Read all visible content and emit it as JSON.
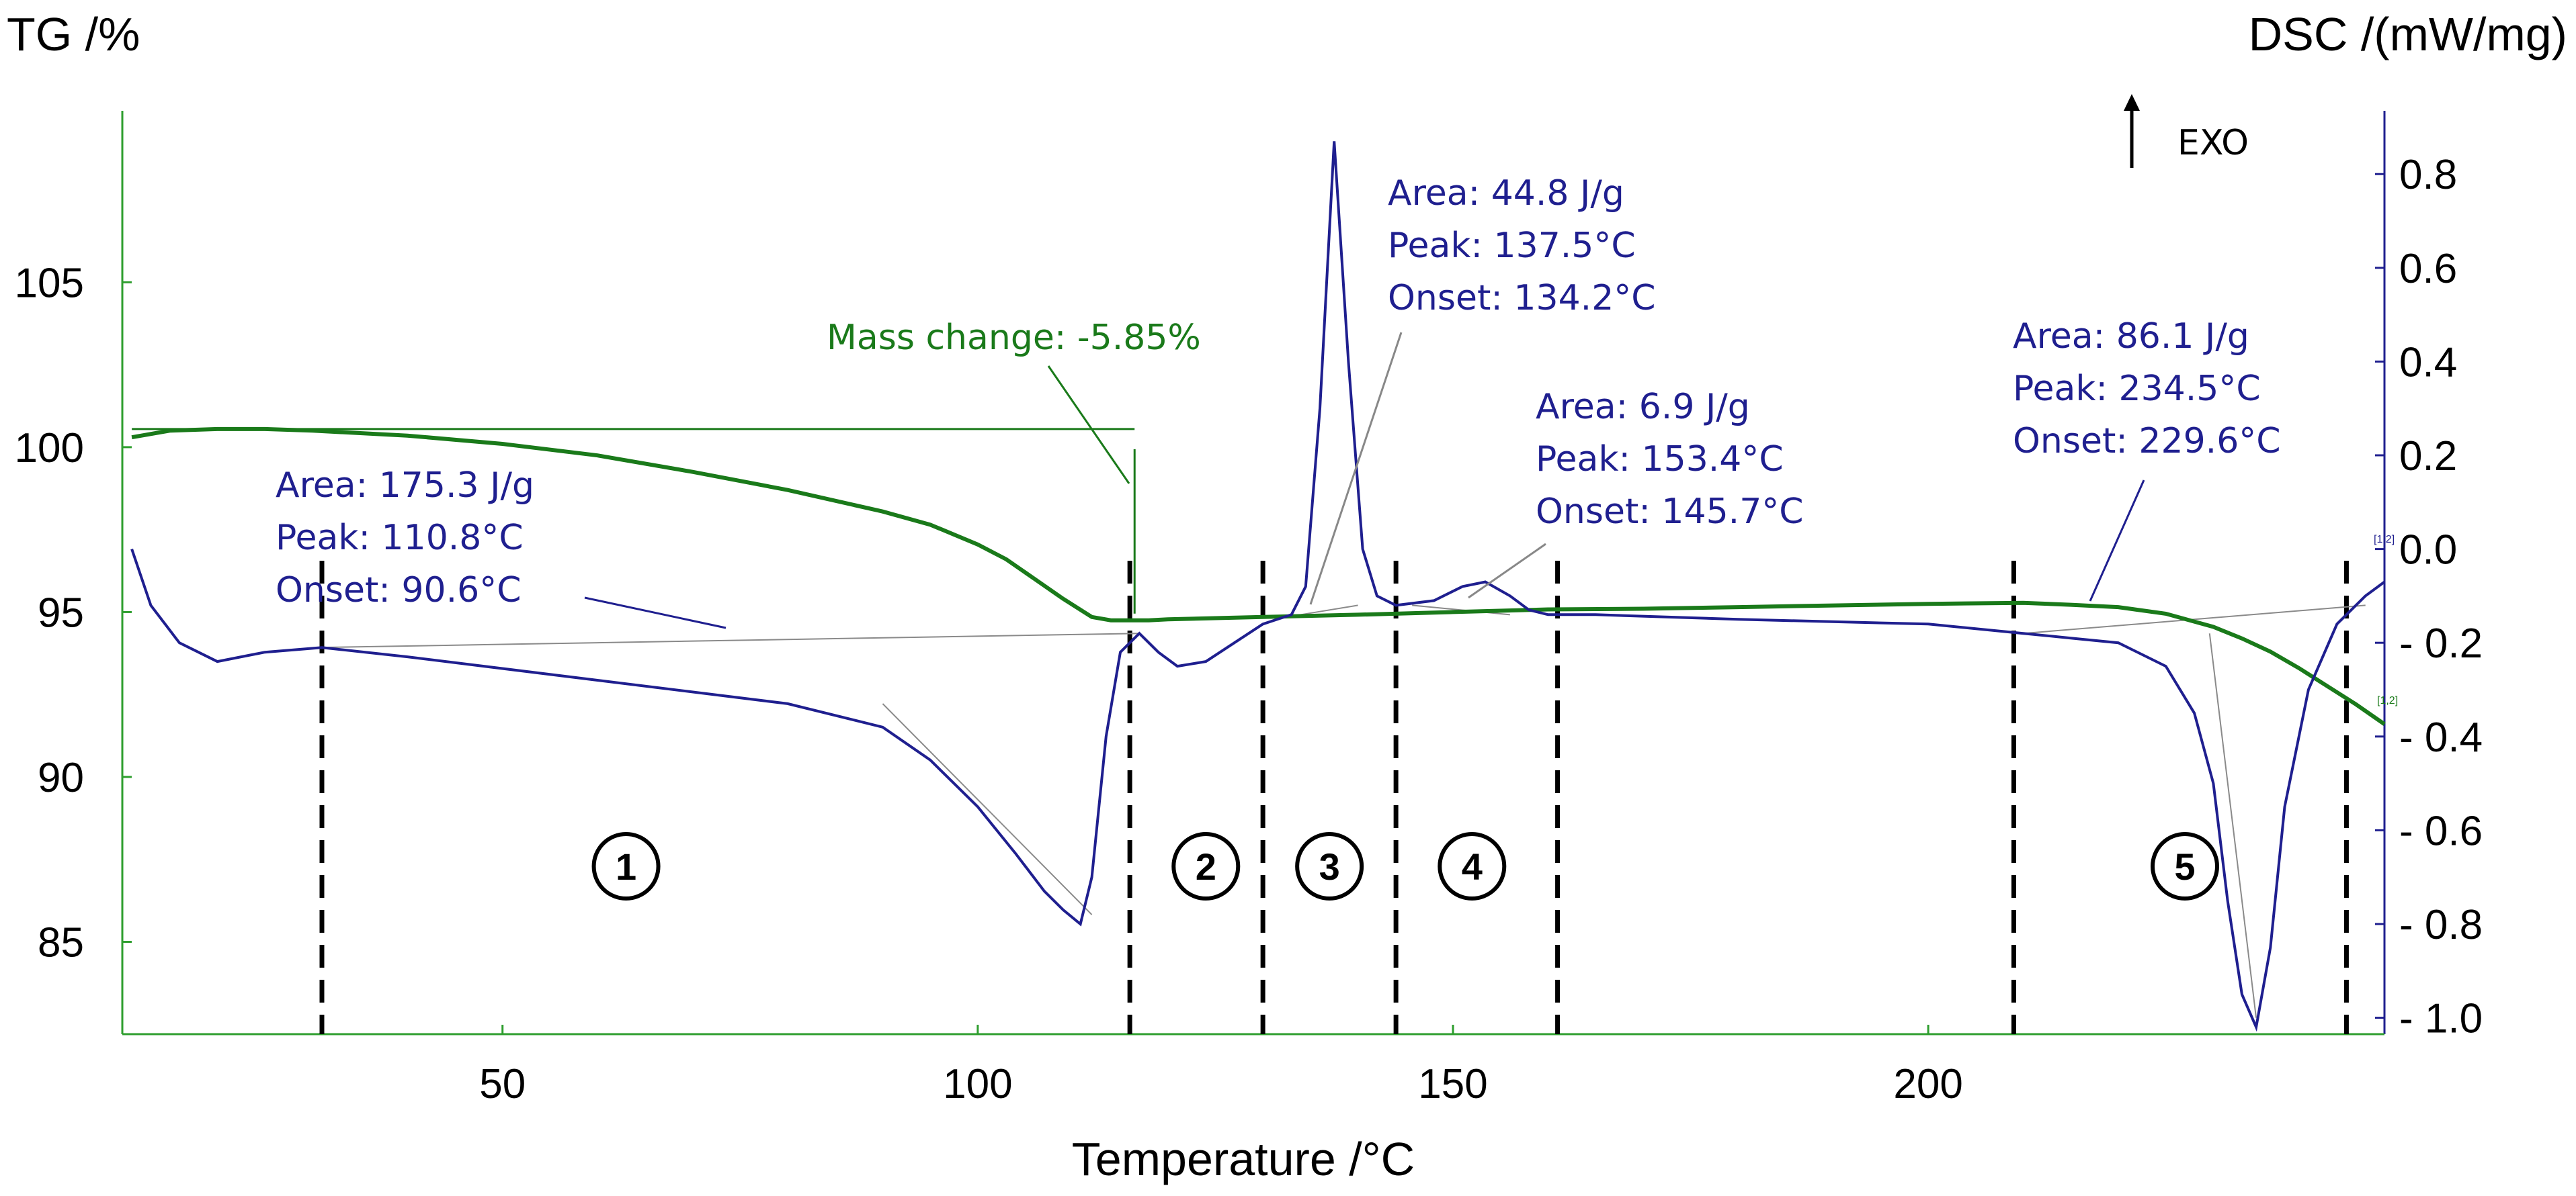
{
  "chart_data": {
    "type": "line",
    "title": "",
    "xlabel": "Temperature /°C",
    "ylabel_left": "TG /%",
    "ylabel_right": "DSC /(mW/mg)",
    "exo_label": "EXO",
    "xlim": [
      10,
      248
    ],
    "ylim_left": [
      82.2,
      110.2
    ],
    "ylim_right": [
      -1.035,
      0.935
    ],
    "x_ticks": [
      50,
      100,
      150,
      200
    ],
    "y_left_ticks": [
      85,
      90,
      95,
      100,
      105
    ],
    "y_right_ticks": [
      0.8,
      0.6,
      0.4,
      0.2,
      0.0,
      -0.2,
      -0.4,
      -0.6,
      -0.8,
      -1.0
    ],
    "y_right_tick_labels": [
      "0.8",
      "0.6",
      "0.4",
      "0.2",
      "0.0",
      "- 0.2",
      "- 0.4",
      "- 0.6",
      "- 0.8",
      "- 1.0"
    ],
    "colors": {
      "tg": "#1a7a1a",
      "dsc": "#1f1f8f",
      "axis_left": "#2e9e2e",
      "axis_right": "#1f1f8f",
      "dashed": "#000000"
    },
    "series": [
      {
        "name": "TG",
        "axis": "left",
        "x": [
          11,
          15,
          20,
          25,
          30,
          40,
          50,
          60,
          70,
          80,
          90,
          95,
          100,
          103,
          106,
          109,
          112,
          114,
          116,
          118,
          120,
          130,
          140,
          150,
          160,
          170,
          180,
          190,
          200,
          210,
          215,
          220,
          225,
          230,
          233,
          236,
          239,
          242,
          245,
          248
        ],
        "y": [
          100.3,
          100.5,
          100.55,
          100.55,
          100.5,
          100.35,
          100.1,
          99.75,
          99.25,
          98.7,
          98.05,
          97.65,
          97.05,
          96.6,
          96.0,
          95.4,
          94.85,
          94.75,
          94.75,
          94.75,
          94.78,
          94.85,
          94.92,
          95.0,
          95.08,
          95.1,
          95.15,
          95.2,
          95.25,
          95.28,
          95.22,
          95.15,
          94.95,
          94.55,
          94.2,
          93.8,
          93.3,
          92.75,
          92.2,
          91.6
        ]
      },
      {
        "name": "DSC",
        "axis": "right",
        "x": [
          11,
          13,
          16,
          20,
          25,
          31,
          40,
          60,
          80,
          90,
          95,
          100,
          104,
          107,
          109,
          110.8,
          112,
          113.5,
          115,
          117,
          119,
          121,
          124,
          127,
          130,
          133,
          134.5,
          136,
          137.5,
          139,
          140.5,
          142,
          144,
          148,
          151,
          153.4,
          156,
          158,
          160,
          165,
          180,
          200,
          210,
          215,
          220,
          225,
          228,
          230,
          231.5,
          233,
          234.5,
          236,
          237.5,
          240,
          243,
          246,
          248
        ],
        "y": [
          0.0,
          -0.12,
          -0.2,
          -0.24,
          -0.22,
          -0.21,
          -0.23,
          -0.28,
          -0.33,
          -0.38,
          -0.45,
          -0.55,
          -0.65,
          -0.73,
          -0.77,
          -0.8,
          -0.7,
          -0.4,
          -0.22,
          -0.18,
          -0.22,
          -0.25,
          -0.24,
          -0.2,
          -0.16,
          -0.14,
          -0.08,
          0.3,
          0.87,
          0.4,
          0.0,
          -0.1,
          -0.12,
          -0.11,
          -0.08,
          -0.07,
          -0.1,
          -0.13,
          -0.14,
          -0.14,
          -0.15,
          -0.16,
          -0.18,
          -0.19,
          -0.2,
          -0.25,
          -0.35,
          -0.5,
          -0.75,
          -0.95,
          -1.02,
          -0.85,
          -0.55,
          -0.3,
          -0.16,
          -0.1,
          -0.07
        ]
      }
    ],
    "boundaries_x": [
      31,
      116,
      130,
      144,
      161,
      209,
      244
    ],
    "regions": [
      {
        "label": "1",
        "x": 63
      },
      {
        "label": "2",
        "x": 124
      },
      {
        "label": "3",
        "x": 137
      },
      {
        "label": "4",
        "x": 152
      },
      {
        "label": "5",
        "x": 227
      }
    ],
    "annotations": {
      "mass_change": "Mass change: -5.85%",
      "peak1": {
        "area": "Area: 175.3 J/g",
        "peak": "Peak: 110.8°C",
        "onset": "Onset: 90.6°C"
      },
      "peak3": {
        "area": "Area: 44.8 J/g",
        "peak": "Peak: 137.5°C",
        "onset": "Onset: 134.2°C"
      },
      "peak4": {
        "area": "Area: 6.9 J/g",
        "peak": "Peak: 153.4°C",
        "onset": "Onset: 145.7°C"
      },
      "peak5": {
        "area": "Area: 86.1 J/g",
        "peak": "Peak: 234.5°C",
        "onset": "Onset: 229.6°C"
      },
      "end_tag_dsc": "[1,2]",
      "end_tag_tg": "[1,2]"
    }
  }
}
